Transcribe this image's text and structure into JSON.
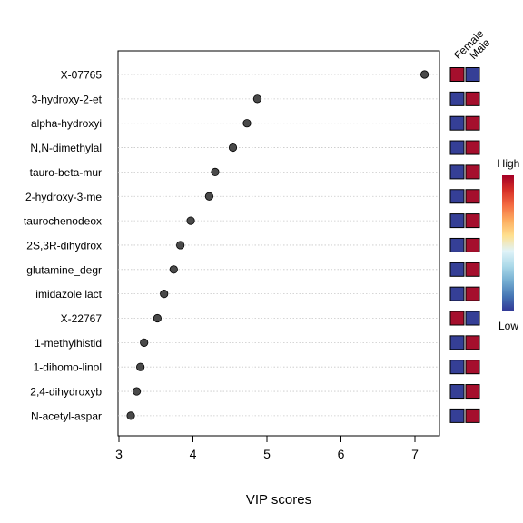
{
  "chart_data": {
    "type": "scatter",
    "xlabel": "VIP scores",
    "xlim": [
      2.95,
      7.3
    ],
    "x_ticks": [
      "3",
      "4",
      "5",
      "6",
      "7"
    ],
    "grid": "horizontal dotted",
    "categories": [
      "X-07765",
      "3-hydroxy-2-et",
      "alpha-hydroxyi",
      "N,N-dimethylal",
      "tauro-beta-mur",
      "2-hydroxy-3-me",
      "taurochenodeox",
      "2S,3R-dihydrox",
      "glutamine_degr",
      "imidazole lact",
      "X-22767",
      "1-methylhistid",
      "1-dihomo-linol",
      "2,4-dihydroxyb",
      "N-acetyl-aspar"
    ],
    "values": [
      7.13,
      4.87,
      4.73,
      4.54,
      4.3,
      4.22,
      3.97,
      3.83,
      3.74,
      3.61,
      3.52,
      3.34,
      3.29,
      3.24,
      3.16
    ],
    "heatmap": {
      "columns": [
        "Female",
        "Male"
      ],
      "levels": [
        [
          "high",
          "low"
        ],
        [
          "low",
          "high"
        ],
        [
          "low",
          "high"
        ],
        [
          "low",
          "high"
        ],
        [
          "low",
          "high"
        ],
        [
          "low",
          "high"
        ],
        [
          "low",
          "high"
        ],
        [
          "low",
          "high"
        ],
        [
          "low",
          "high"
        ],
        [
          "low",
          "high"
        ],
        [
          "high",
          "low"
        ],
        [
          "low",
          "high"
        ],
        [
          "low",
          "high"
        ],
        [
          "low",
          "high"
        ],
        [
          "low",
          "high"
        ]
      ]
    },
    "legend": {
      "high_label": "High",
      "low_label": "Low",
      "placement": "right"
    },
    "colors": {
      "high": "#a50f2d",
      "low": "#353f96",
      "point_fill": "#4a4a4a",
      "gradient": [
        "#a50026",
        "#d73027",
        "#f46d43",
        "#fdae61",
        "#fee090",
        "#e0f3f8",
        "#abd9e9",
        "#74add1",
        "#4575b4",
        "#313695"
      ]
    }
  }
}
